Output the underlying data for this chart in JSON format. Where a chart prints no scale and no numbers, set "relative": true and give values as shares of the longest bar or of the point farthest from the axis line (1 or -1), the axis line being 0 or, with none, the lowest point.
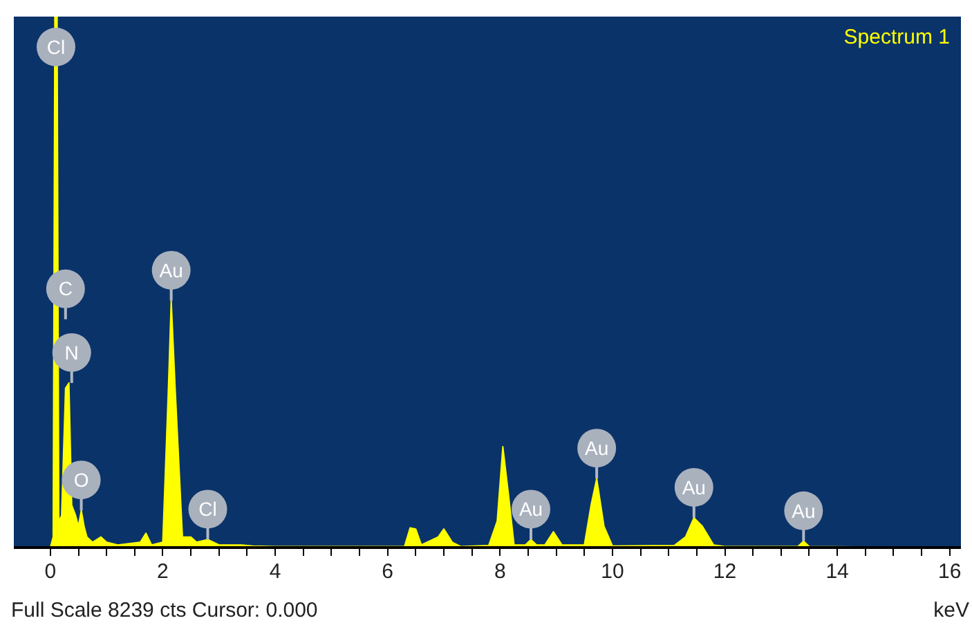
{
  "chart_data": {
    "type": "area",
    "relative": true,
    "xlabel": "keV",
    "xlim": [
      -0.65,
      16.2
    ],
    "xticks": [
      0,
      {
        "value": 0.5,
        "label": null
      },
      {
        "value": 1,
        "label": null
      },
      {
        "value": 1.5,
        "label": null
      },
      2,
      {
        "value": 2.5,
        "label": null
      },
      {
        "value": 3,
        "label": null
      },
      {
        "value": 3.5,
        "label": null
      },
      4,
      {
        "value": 4.5,
        "label": null
      },
      {
        "value": 5,
        "label": null
      },
      {
        "value": 5.5,
        "label": null
      },
      6,
      {
        "value": 6.5,
        "label": null
      },
      {
        "value": 7,
        "label": null
      },
      {
        "value": 7.5,
        "label": null
      },
      8,
      {
        "value": 8.5,
        "label": null
      },
      {
        "value": 9,
        "label": null
      },
      {
        "value": 9.5,
        "label": null
      },
      10,
      {
        "value": 10.5,
        "label": null
      },
      {
        "value": 11,
        "label": null
      },
      {
        "value": 11.5,
        "label": null
      },
      12,
      {
        "value": 12.5,
        "label": null
      },
      {
        "value": 13,
        "label": null
      },
      {
        "value": 13.5,
        "label": null
      },
      14,
      {
        "value": 14.5,
        "label": null
      },
      {
        "value": 15,
        "label": null
      },
      {
        "value": 15.5,
        "label": null
      },
      16
    ],
    "legend": "top right",
    "grid": false,
    "x": [
      0,
      0.05,
      0.08,
      0.12,
      0.15,
      0.2,
      0.27,
      0.33,
      0.38,
      0.45,
      0.5,
      0.55,
      0.6,
      0.65,
      0.75,
      0.9,
      1.0,
      1.2,
      1.6,
      1.7,
      1.8,
      2.0,
      2.1,
      2.15,
      2.22,
      2.35,
      2.5,
      2.6,
      2.8,
      3.0,
      3.4,
      3.6,
      4.0,
      6.3,
      6.4,
      6.5,
      6.6,
      6.9,
      7.0,
      7.15,
      7.3,
      7.8,
      7.95,
      8.05,
      8.15,
      8.25,
      8.45,
      8.55,
      8.65,
      8.8,
      8.95,
      9.1,
      9.5,
      9.62,
      9.72,
      9.85,
      10.0,
      11.1,
      11.3,
      11.45,
      11.6,
      11.8,
      12.0,
      13.3,
      13.4,
      13.5,
      16
    ],
    "series": [
      {
        "name": "Spectrum 1",
        "color": "#ffff00",
        "values": [
          0,
          0.02,
          1.0,
          1.0,
          0.05,
          0.06,
          0.3,
          0.31,
          0.08,
          0.06,
          0.04,
          0.07,
          0.04,
          0.02,
          0.01,
          0.02,
          0.01,
          0.005,
          0.01,
          0.027,
          0.005,
          0.01,
          0.3,
          0.465,
          0.3,
          0.02,
          0.02,
          0.01,
          0.015,
          0.005,
          0.005,
          0.003,
          0.002,
          0.002,
          0.037,
          0.035,
          0.005,
          0.02,
          0.035,
          0.01,
          0.002,
          0.004,
          0.05,
          0.19,
          0.1,
          0.005,
          0.005,
          0.015,
          0.005,
          0.005,
          0.03,
          0.005,
          0.005,
          0.08,
          0.13,
          0.04,
          0.003,
          0.004,
          0.02,
          0.056,
          0.04,
          0.005,
          0.002,
          0.002,
          0.012,
          0.002,
          0
        ]
      }
    ],
    "annotations": [
      {
        "text": "Cl",
        "x": 0.1,
        "y": 1.0
      },
      {
        "text": "C",
        "x": 0.27,
        "y": 0.43
      },
      {
        "text": "N",
        "x": 0.38,
        "y": 0.31
      },
      {
        "text": "O",
        "x": 0.55,
        "y": 0.07
      },
      {
        "text": "Au",
        "x": 2.15,
        "y": 0.465
      },
      {
        "text": "Cl",
        "x": 2.8,
        "y": 0.015
      },
      {
        "text": "Au",
        "x": 8.55,
        "y": 0.015
      },
      {
        "text": "Au",
        "x": 9.72,
        "y": 0.13
      },
      {
        "text": "Au",
        "x": 11.45,
        "y": 0.056
      },
      {
        "text": "Au",
        "x": 13.4,
        "y": 0.012
      },
      "Full Scale 8239 cts Cursor: 0.000"
    ]
  }
}
